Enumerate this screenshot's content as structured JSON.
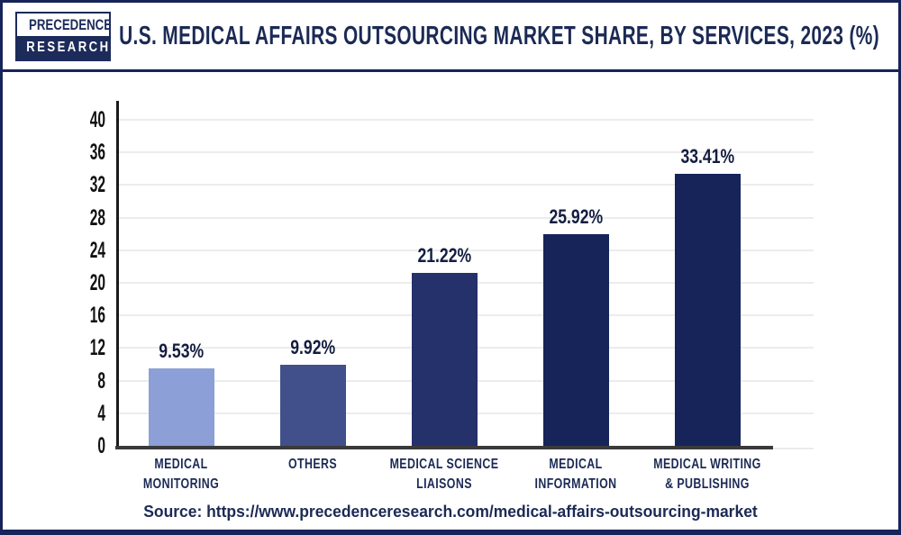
{
  "header": {
    "logo": {
      "line1": "PRECEDENCE",
      "line2": "RESEARCH"
    },
    "title": "U.S. MEDICAL AFFAIRS OUTSOURCING MARKET SHARE, BY SERVICES, 2023 (%)"
  },
  "chart_data": {
    "type": "bar",
    "title": "U.S. Medical Affairs Outsourcing Market Share, By Services, 2023 (%)",
    "categories": [
      [
        "MEDICAL",
        "MONITORING"
      ],
      [
        "OTHERS"
      ],
      [
        "MEDICAL SCIENCE",
        "LIAISONS"
      ],
      [
        "MEDICAL",
        "INFORMATION"
      ],
      [
        "MEDICAL WRITING",
        "& PUBLISHING"
      ]
    ],
    "values": [
      9.53,
      9.92,
      21.22,
      25.92,
      33.41
    ],
    "value_labels": [
      "9.53%",
      "9.92%",
      "21.22%",
      "25.92%",
      "33.41%"
    ],
    "bar_colors": [
      "#8C9FD6",
      "#41508A",
      "#25316A",
      "#16245A",
      "#16245A"
    ],
    "xlabel": "",
    "ylabel": "",
    "ylim": [
      0,
      40
    ],
    "yticks": [
      0,
      4,
      8,
      12,
      16,
      20,
      24,
      28,
      32,
      36,
      40
    ],
    "grid": "horizontal",
    "legend": "none"
  },
  "footer": {
    "source": "Source: https://www.precedenceresearch.com/medical-affairs-outsourcing-market"
  },
  "colors": {
    "navy": "#16245A",
    "title_text": "#1B2A55",
    "grid": "#ECECEC",
    "y_axis": "#1A1A1A",
    "x_axis": "#3A3A3A",
    "tick_text": "#111111",
    "value_text": "#141D40"
  }
}
